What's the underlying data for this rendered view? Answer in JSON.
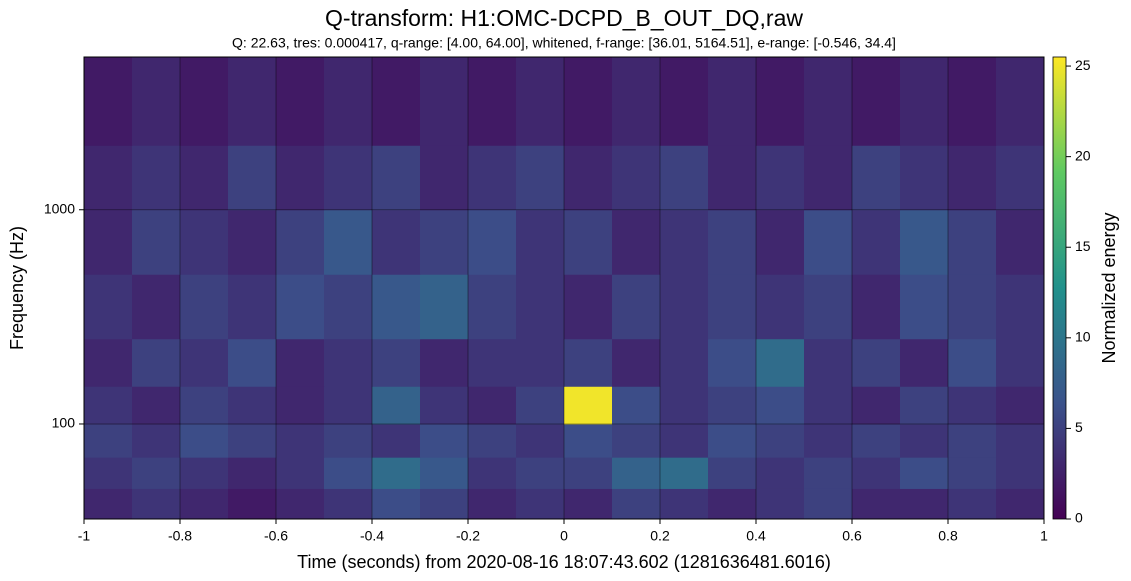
{
  "chart_data": {
    "type": "heatmap",
    "title": "Q-transform: H1:OMC-DCPD_B_OUT_DQ,raw",
    "subtitle": "Q: 22.63, tres: 0.000417, q-range: [4.00, 64.00], whitened, f-range: [36.01, 5164.51], e-range: [-0.546, 34.4]",
    "xlabel": "Time (seconds) from 2020-08-16 18:07:43.602 (1281636481.6016)",
    "ylabel": "Frequency (Hz)",
    "colorbar_label": "Normalized energy",
    "colormap": "viridis",
    "xlim": [
      -1,
      1
    ],
    "xticks": [
      -1,
      -0.8,
      -0.6,
      -0.4,
      -0.2,
      0,
      0.2,
      0.4,
      0.6,
      0.8,
      1
    ],
    "ylim": [
      36.01,
      5164.51
    ],
    "yscale": "log",
    "yticks": [
      100,
      1000
    ],
    "clim": [
      0,
      25.5
    ],
    "cticks": [
      0,
      5,
      10,
      15,
      20,
      25
    ],
    "grid": true,
    "x_edges": [
      -1,
      -0.9,
      -0.8,
      -0.7,
      -0.6,
      -0.5,
      -0.4,
      -0.3,
      -0.2,
      -0.1,
      0,
      0.1,
      0.2,
      0.3,
      0.4,
      0.5,
      0.6,
      0.7,
      0.8,
      0.9,
      1
    ],
    "y_edges": [
      36.01,
      50,
      70,
      100,
      150,
      250,
      500,
      1000,
      2000,
      5164.51
    ],
    "z": [
      [
        3,
        4,
        3,
        2,
        3,
        4,
        6,
        5,
        3,
        4,
        3,
        5,
        4,
        3,
        4,
        5,
        3,
        3,
        4,
        3
      ],
      [
        4,
        5,
        4,
        3,
        4,
        6,
        9,
        7,
        4,
        5,
        5,
        8,
        9,
        5,
        4,
        5,
        4,
        6,
        5,
        4
      ],
      [
        5,
        4,
        6,
        5,
        4,
        5,
        4,
        6,
        5,
        4,
        6,
        5,
        4,
        6,
        5,
        4,
        5,
        4,
        5,
        4
      ],
      [
        4,
        3,
        5,
        4,
        3,
        4,
        8,
        4,
        3,
        5,
        25,
        6,
        4,
        5,
        6,
        4,
        3,
        5,
        4,
        3
      ],
      [
        3,
        5,
        4,
        6,
        3,
        4,
        5,
        3,
        4,
        4,
        5,
        3,
        4,
        6,
        9,
        4,
        5,
        3,
        6,
        4
      ],
      [
        4,
        3,
        5,
        4,
        6,
        5,
        7,
        8,
        5,
        4,
        3,
        5,
        4,
        5,
        4,
        5,
        3,
        6,
        5,
        4
      ],
      [
        3,
        5,
        4,
        3,
        5,
        7,
        4,
        5,
        6,
        4,
        5,
        3,
        4,
        5,
        3,
        6,
        4,
        7,
        5,
        3
      ],
      [
        3,
        4,
        3,
        5,
        3,
        4,
        5,
        3,
        4,
        5,
        3,
        4,
        5,
        3,
        4,
        3,
        5,
        4,
        3,
        4
      ],
      [
        2,
        3,
        2,
        3,
        2,
        3,
        2,
        3,
        2,
        3,
        2,
        3,
        2,
        3,
        2,
        3,
        2,
        3,
        2,
        3
      ]
    ]
  }
}
